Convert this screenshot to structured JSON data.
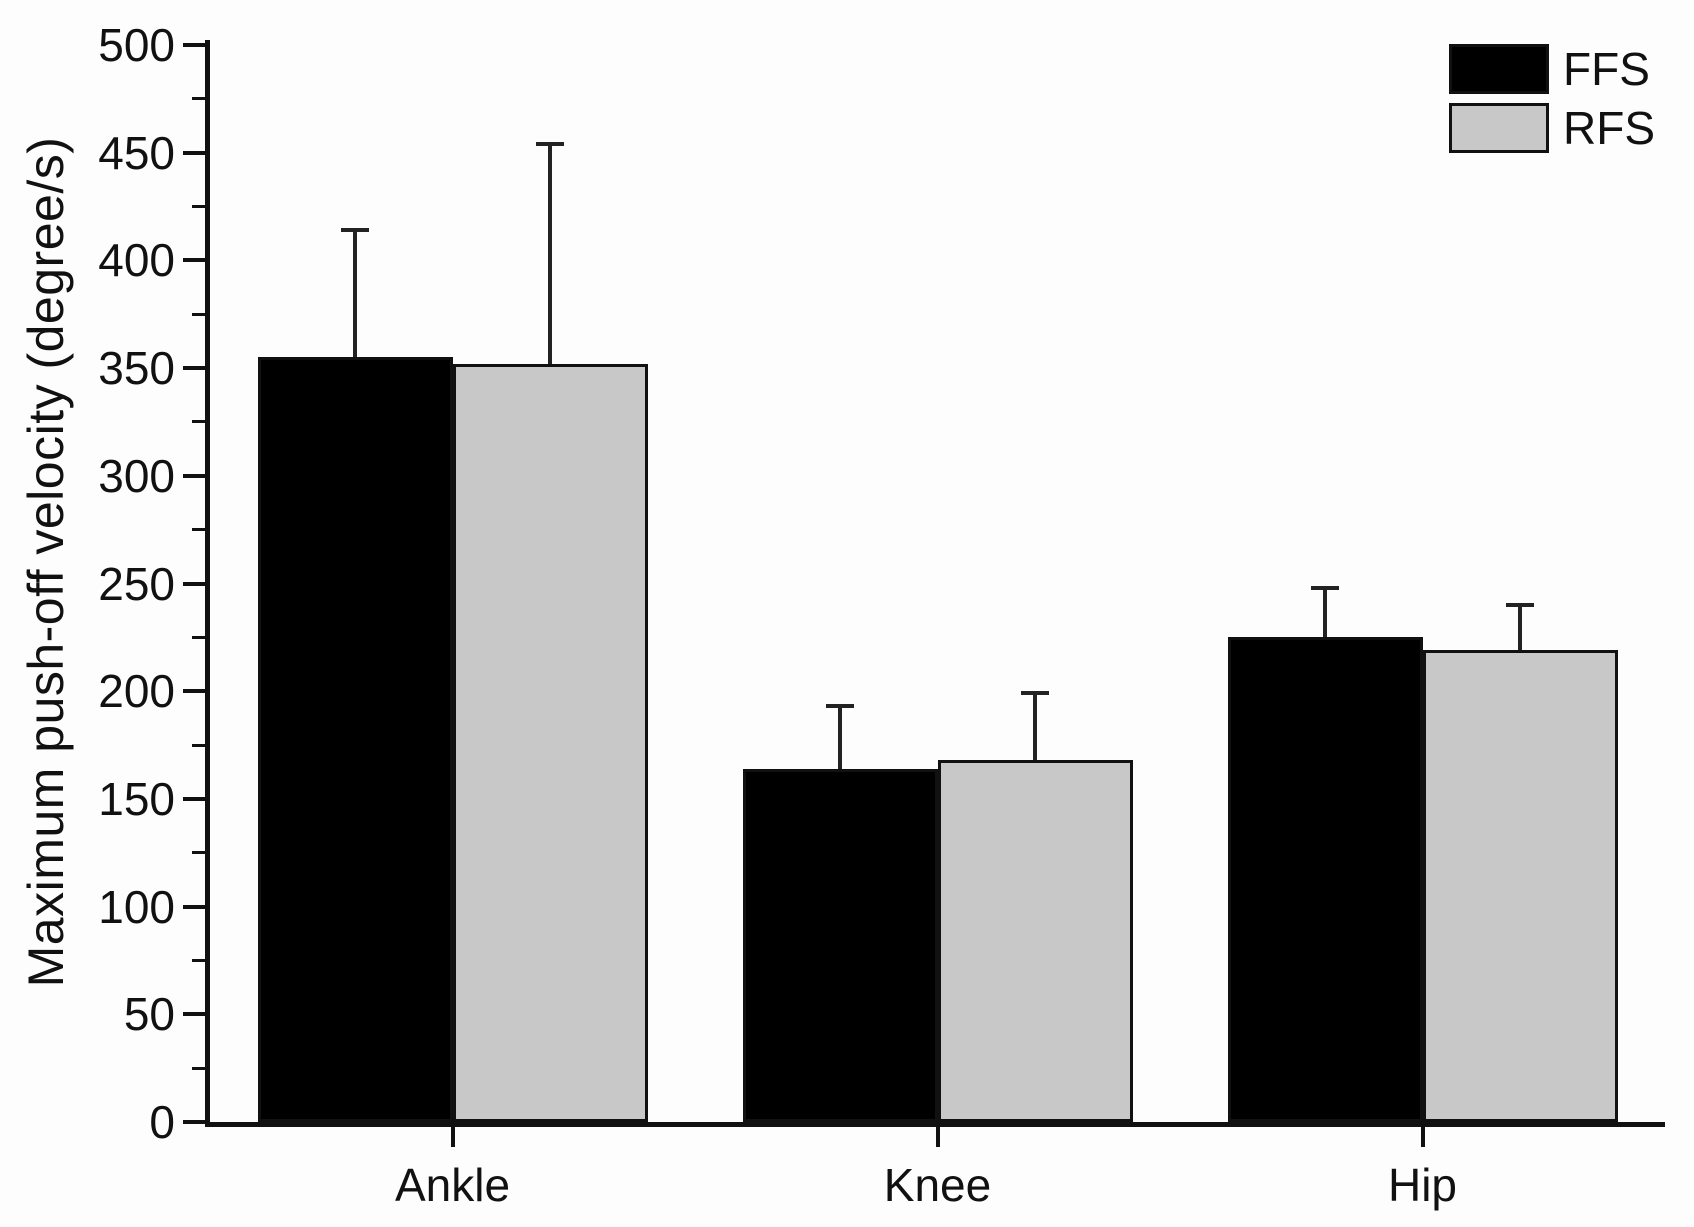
{
  "figure": {
    "background": "#fdfdfd",
    "axis_color": "#111111"
  },
  "chart_data": {
    "type": "bar",
    "title": "",
    "xlabel": "",
    "ylabel": "Maximum push-off velocity (degree/s)",
    "categories": [
      "Ankle",
      "Knee",
      "Hip"
    ],
    "series": [
      {
        "name": "FFS",
        "color": "#000000",
        "values": [
          355,
          164,
          225
        ],
        "error_plus": [
          59,
          29,
          23
        ]
      },
      {
        "name": "RFS",
        "color": "#c8c8c8",
        "values": [
          352,
          168,
          219
        ],
        "error_plus": [
          102,
          31,
          21
        ]
      }
    ],
    "ylim": [
      0,
      500
    ],
    "ytick_major_step": 50,
    "ytick_minor_step": 25,
    "yticks": [
      0,
      50,
      100,
      150,
      200,
      250,
      300,
      350,
      400,
      450,
      500
    ],
    "grid": false,
    "legend_position": "top-right",
    "bar_edge_color": "#111111",
    "error_bar_color": "#222222"
  }
}
